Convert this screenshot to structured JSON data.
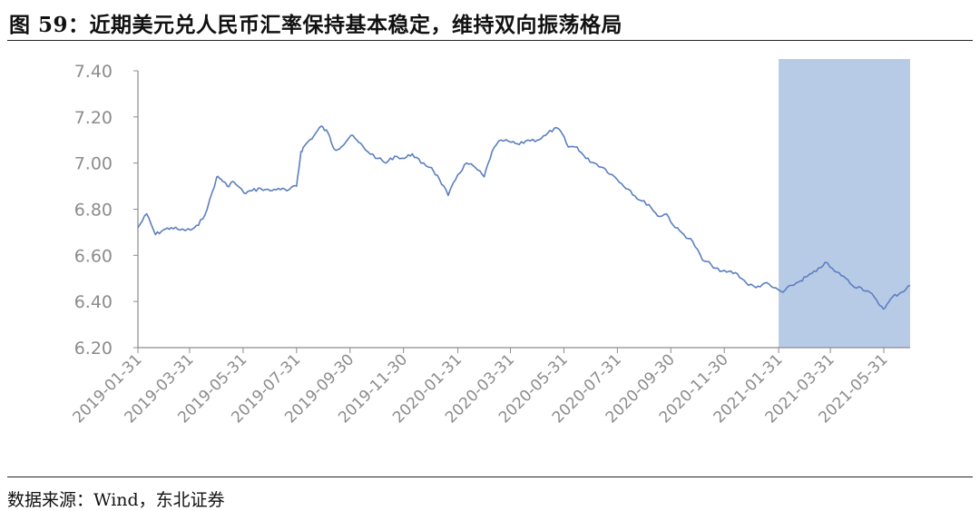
{
  "figure": {
    "title": "图 59：近期美元兑人民币汇率保持基本稳定，维持双向振荡格局",
    "source": "数据来源：Wind，东北证券"
  },
  "chart_data": {
    "type": "line",
    "ylim": [
      6.2,
      7.4
    ],
    "yticks": [
      "7.40",
      "7.20",
      "7.00",
      "6.80",
      "6.60",
      "6.40",
      "6.20"
    ],
    "xlim": [
      "2019-01-31",
      "2021-06-30"
    ],
    "xticks": [
      "2019-01-31",
      "2019-03-31",
      "2019-05-31",
      "2019-07-31",
      "2019-09-30",
      "2019-11-30",
      "2020-01-31",
      "2020-03-31",
      "2020-05-31",
      "2020-07-31",
      "2020-09-30",
      "2020-11-30",
      "2021-01-31",
      "2021-03-31",
      "2021-05-31"
    ],
    "grid": false,
    "legend": "none",
    "line_color": "#5b7fc0",
    "shaded_region": {
      "start": "2021-01-31",
      "end": "2021-06-30",
      "color": "#b8cbe6"
    },
    "series": [
      {
        "x": [
          "2019-01-31",
          "2019-02-10",
          "2019-02-20",
          "2019-03-01",
          "2019-03-10",
          "2019-03-20",
          "2019-04-01",
          "2019-04-10",
          "2019-04-20",
          "2019-05-01",
          "2019-05-06",
          "2019-05-13",
          "2019-05-20",
          "2019-06-01",
          "2019-06-10",
          "2019-06-20",
          "2019-07-01",
          "2019-07-10",
          "2019-07-20",
          "2019-07-31",
          "2019-08-05",
          "2019-08-10",
          "2019-08-20",
          "2019-08-28",
          "2019-09-05",
          "2019-09-12",
          "2019-09-20",
          "2019-10-01",
          "2019-10-10",
          "2019-10-20",
          "2019-11-01",
          "2019-11-10",
          "2019-11-20",
          "2019-12-01",
          "2019-12-10",
          "2019-12-20",
          "2020-01-01",
          "2020-01-10",
          "2020-01-20",
          "2020-01-31",
          "2020-02-10",
          "2020-02-20",
          "2020-03-01",
          "2020-03-10",
          "2020-03-20",
          "2020-04-01",
          "2020-04-10",
          "2020-04-20",
          "2020-05-01",
          "2020-05-10",
          "2020-05-20",
          "2020-05-27",
          "2020-06-05",
          "2020-06-15",
          "2020-06-25",
          "2020-07-05",
          "2020-07-15",
          "2020-07-25",
          "2020-08-05",
          "2020-08-15",
          "2020-08-25",
          "2020-09-05",
          "2020-09-15",
          "2020-09-25",
          "2020-10-05",
          "2020-10-15",
          "2020-10-25",
          "2020-11-05",
          "2020-11-15",
          "2020-11-25",
          "2020-12-05",
          "2020-12-15",
          "2020-12-25",
          "2021-01-05",
          "2021-01-15",
          "2021-01-25",
          "2021-02-05",
          "2021-02-15",
          "2021-02-25",
          "2021-03-05",
          "2021-03-15",
          "2021-03-25",
          "2021-04-05",
          "2021-04-15",
          "2021-04-25",
          "2021-05-05",
          "2021-05-15",
          "2021-05-25",
          "2021-06-01",
          "2021-06-10",
          "2021-06-20",
          "2021-06-30"
        ],
        "values": [
          6.72,
          6.78,
          6.69,
          6.71,
          6.72,
          6.71,
          6.71,
          6.73,
          6.8,
          6.94,
          6.93,
          6.9,
          6.92,
          6.87,
          6.88,
          6.89,
          6.88,
          6.89,
          6.88,
          6.9,
          7.05,
          7.08,
          7.12,
          7.16,
          7.13,
          7.06,
          7.07,
          7.12,
          7.09,
          7.05,
          7.02,
          7.0,
          7.03,
          7.02,
          7.04,
          7.0,
          6.98,
          6.93,
          6.86,
          6.95,
          7.0,
          6.98,
          6.94,
          7.05,
          7.1,
          7.09,
          7.08,
          7.1,
          7.1,
          7.12,
          7.15,
          7.14,
          7.07,
          7.07,
          7.02,
          7.0,
          6.98,
          6.95,
          6.91,
          6.88,
          6.84,
          6.82,
          6.77,
          6.78,
          6.72,
          6.69,
          6.66,
          6.58,
          6.56,
          6.53,
          6.53,
          6.52,
          6.48,
          6.46,
          6.48,
          6.46,
          6.44,
          6.47,
          6.49,
          6.51,
          6.53,
          6.57,
          6.53,
          6.51,
          6.47,
          6.46,
          6.44,
          6.39,
          6.37,
          6.42,
          6.44,
          6.47
        ]
      }
    ]
  }
}
